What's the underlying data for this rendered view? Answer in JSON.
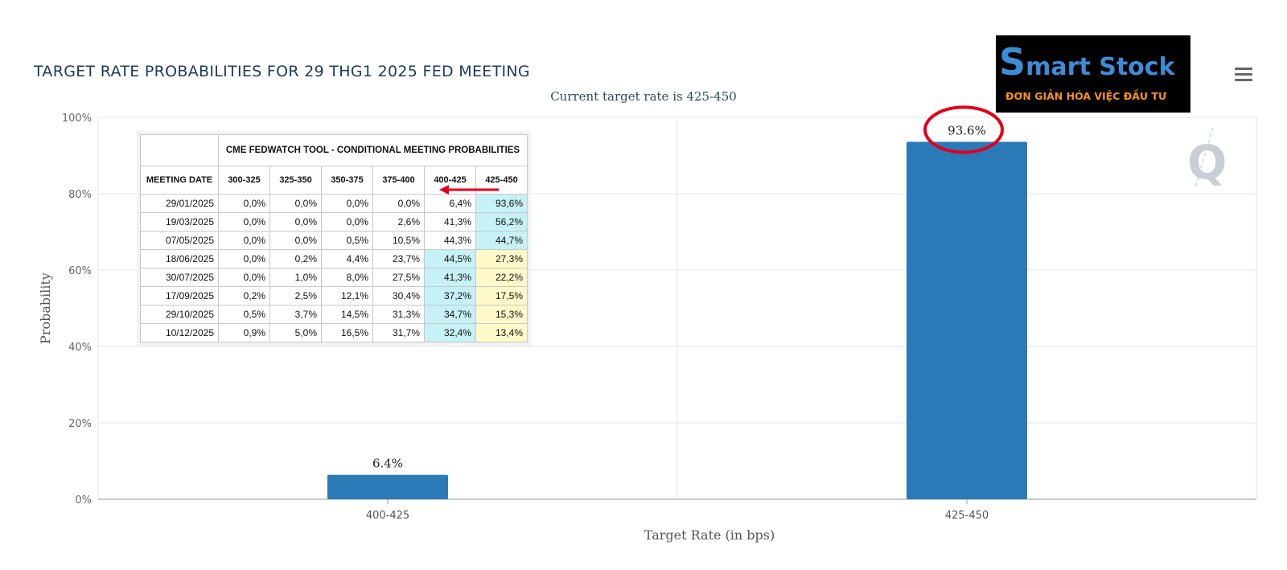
{
  "title": "TARGET RATE PROBABILITIES FOR 29 THG1 2025 FED MEETING",
  "subtitle": "Current target rate is 425-450",
  "logo": {
    "brand_initial": "S",
    "brand_rest": "mart Stock",
    "slogan": "ĐƠN GIẢN HÓA VIỆC ĐẦU TƯ"
  },
  "watermark": "Q",
  "colors": {
    "bar": "#2a7ab8",
    "grid": "#e6e6e6",
    "highlight_ring": "#e3001b",
    "arrow": "#e3001b",
    "cyan_cell": "#c6f1f6",
    "yellow_cell": "#fdf9c9"
  },
  "chart_data": {
    "type": "bar",
    "title": "TARGET RATE PROBABILITIES FOR 29 THG1 2025 FED MEETING",
    "subtitle": "Current target rate is 425-450",
    "categories": [
      "400-425",
      "425-450"
    ],
    "values": [
      6.4,
      93.6
    ],
    "data_labels": [
      "6.4%",
      "93.6%"
    ],
    "xlabel": "Target Rate (in bps)",
    "ylabel": "Probability",
    "ylim": [
      0,
      100
    ],
    "yticks": [
      0,
      20,
      40,
      60,
      80,
      100
    ],
    "ytick_labels": [
      "0%",
      "20%",
      "40%",
      "60%",
      "80%",
      "100%"
    ],
    "grid": true,
    "highlighted_label": "93.6%"
  },
  "table": {
    "title": "CME FEDWATCH TOOL - CONDITIONAL MEETING PROBABILITIES",
    "headers": [
      "MEETING DATE",
      "300-325",
      "325-350",
      "350-375",
      "375-400",
      "400-425",
      "425-450"
    ],
    "rows": [
      [
        "29/01/2025",
        "0,0%",
        "0,0%",
        "0,0%",
        "0,0%",
        "6,4%",
        "93,6%"
      ],
      [
        "19/03/2025",
        "0,0%",
        "0,0%",
        "0,0%",
        "2,6%",
        "41,3%",
        "56,2%"
      ],
      [
        "07/05/2025",
        "0,0%",
        "0,0%",
        "0,5%",
        "10,5%",
        "44,3%",
        "44,7%"
      ],
      [
        "18/06/2025",
        "0,0%",
        "0,2%",
        "4,4%",
        "23,7%",
        "44,5%",
        "27,3%"
      ],
      [
        "30/07/2025",
        "0,0%",
        "1,0%",
        "8,0%",
        "27,5%",
        "41,3%",
        "22,2%"
      ],
      [
        "17/09/2025",
        "0,2%",
        "2,5%",
        "12,1%",
        "30,4%",
        "37,2%",
        "17,5%"
      ],
      [
        "29/10/2025",
        "0,5%",
        "3,7%",
        "14,5%",
        "31,3%",
        "34,7%",
        "15,3%"
      ],
      [
        "10/12/2025",
        "0,9%",
        "5,0%",
        "16,5%",
        "31,7%",
        "32,4%",
        "13,4%"
      ]
    ],
    "cell_highlights": [
      [
        "",
        "",
        "",
        "",
        "",
        "",
        "cyan"
      ],
      [
        "",
        "",
        "",
        "",
        "",
        "",
        "cyan"
      ],
      [
        "",
        "",
        "",
        "",
        "",
        "",
        "cyan"
      ],
      [
        "",
        "",
        "",
        "",
        "",
        "cyan",
        "yellow"
      ],
      [
        "",
        "",
        "",
        "",
        "",
        "cyan",
        "yellow"
      ],
      [
        "",
        "",
        "",
        "",
        "",
        "cyan",
        "yellow"
      ],
      [
        "",
        "",
        "",
        "",
        "",
        "cyan",
        "yellow"
      ],
      [
        "",
        "",
        "",
        "",
        "",
        "cyan",
        "yellow"
      ]
    ]
  }
}
